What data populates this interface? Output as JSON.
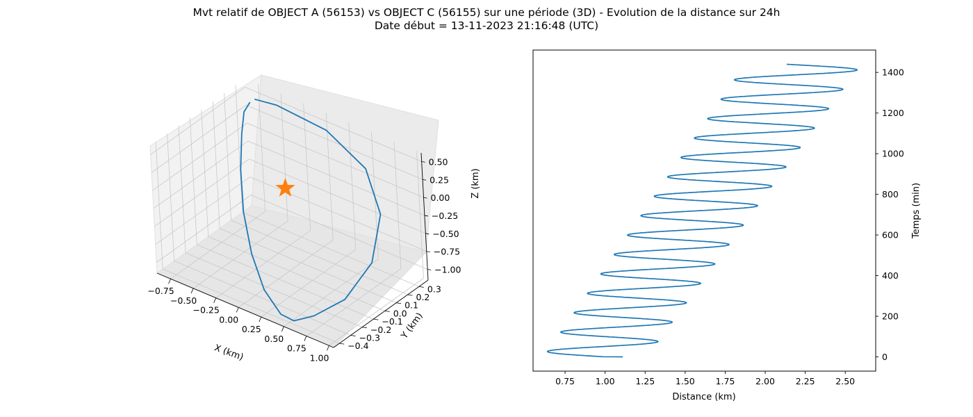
{
  "figure": {
    "title_line1": "Mvt relatif de OBJECT A (56153) vs OBJECT C (56155) sur une période (3D) - Evolution de la distance sur 24h",
    "title_line2": "Date début = 13-11-2023 21:16:48 (UTC)"
  },
  "chart_data": [
    {
      "type": "line3d",
      "xlabel": "X (km)",
      "ylabel": "Y (km)",
      "zlabel": "Z (km)",
      "xlim": [
        -0.9,
        1.05
      ],
      "ylim": [
        -0.45,
        0.38
      ],
      "zlim": [
        -1.15,
        0.62
      ],
      "xticks": [
        "−0.75",
        "−0.50",
        "−0.25",
        "0.00",
        "0.25",
        "0.50",
        "0.75",
        "1.00"
      ],
      "yticks": [
        "−0.4",
        "−0.3",
        "−0.2",
        "−0.1",
        "0.0",
        "0.1",
        "0.2",
        "0.3"
      ],
      "zticks": [
        "−1.00",
        "−0.75",
        "−0.50",
        "−0.25",
        "0.00",
        "0.25",
        "0.50"
      ],
      "grid": true,
      "series": [
        {
          "color": "#1f77b4",
          "points": [
            [
              -0.72,
              0.28,
              0.5
            ],
            [
              -0.74,
              0.24,
              0.4
            ],
            [
              -0.7,
              0.18,
              0.18
            ],
            [
              -0.6,
              0.08,
              -0.15
            ],
            [
              -0.42,
              -0.05,
              -0.5
            ],
            [
              -0.18,
              -0.18,
              -0.8
            ],
            [
              0.1,
              -0.3,
              -1.02
            ],
            [
              0.38,
              -0.38,
              -1.12
            ],
            [
              0.55,
              -0.4,
              -1.1
            ],
            [
              0.7,
              -0.34,
              -1.02
            ],
            [
              0.9,
              -0.22,
              -0.82
            ],
            [
              1.0,
              -0.05,
              -0.45
            ],
            [
              0.9,
              0.12,
              -0.02
            ],
            [
              0.6,
              0.24,
              0.32
            ],
            [
              0.1,
              0.3,
              0.52
            ],
            [
              -0.45,
              0.3,
              0.58
            ],
            [
              -0.68,
              0.29,
              0.55
            ]
          ]
        }
      ],
      "marker": {
        "symbol": "star",
        "color": "#ff7f0e",
        "x": 0,
        "y": 0,
        "z": 0
      }
    },
    {
      "type": "line",
      "xlabel": "Distance (km)",
      "ylabel": "Temps (min)",
      "xlim": [
        0.55,
        2.69
      ],
      "ylim": [
        -70,
        1510
      ],
      "xticks": [
        0.75,
        1.0,
        1.25,
        1.5,
        1.75,
        2.0,
        2.25,
        2.5
      ],
      "yticks": [
        0,
        200,
        400,
        600,
        800,
        1000,
        1200,
        1400
      ],
      "grid": false,
      "series": [
        {
          "color": "#1f77b4",
          "t_start": 0,
          "t_end": 1440,
          "period_min": 95.5,
          "distance_start": 1.11,
          "left_extremes": [
            [
              27,
              0.64
            ],
            [
              1435,
              1.87
            ]
          ],
          "right_extremes": [
            [
              0,
              1.26
            ],
            [
              1440,
              2.6
            ]
          ]
        }
      ]
    }
  ]
}
